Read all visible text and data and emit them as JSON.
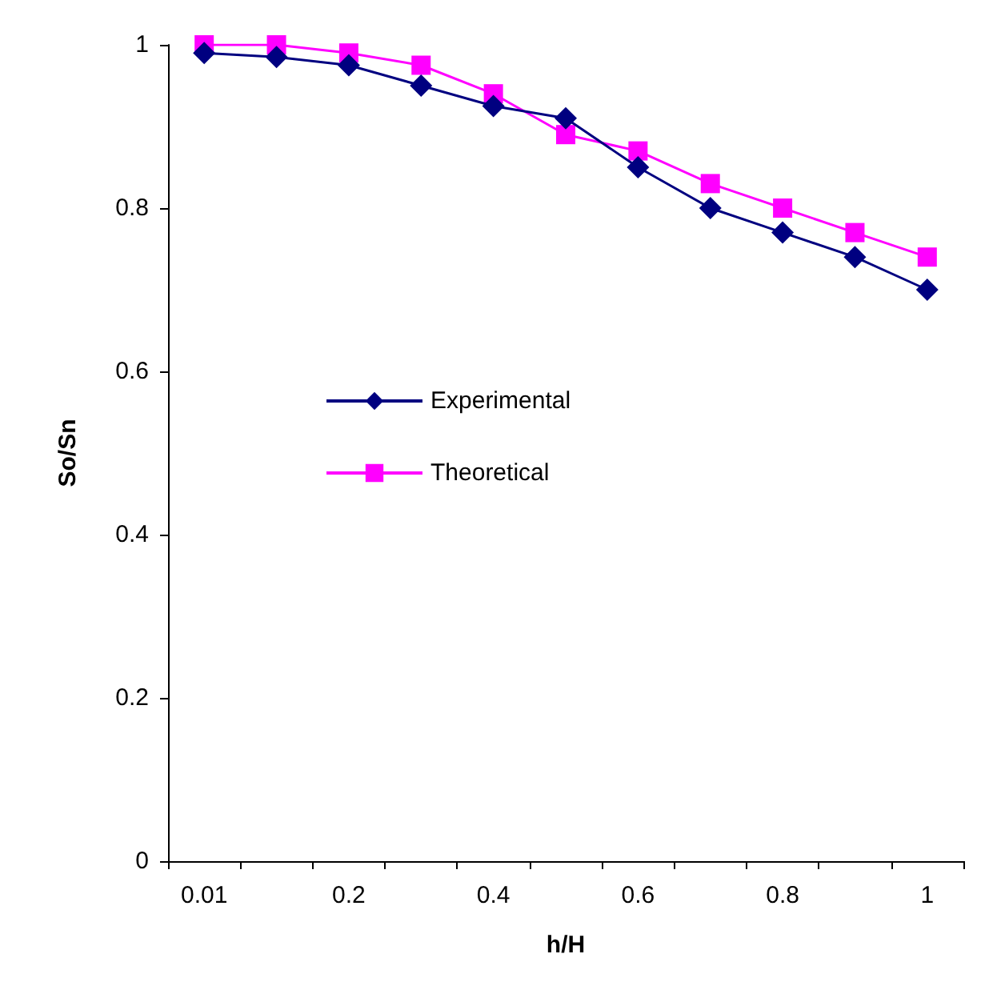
{
  "chart_data": {
    "type": "line",
    "xlabel": "h/H",
    "ylabel": "So/Sn",
    "categories": [
      "0.01",
      null,
      "0.2",
      null,
      "0.4",
      null,
      "0.6",
      null,
      "0.8",
      null,
      "1"
    ],
    "series": [
      {
        "name": "Experimental",
        "color": "#000080",
        "marker": "diamond",
        "values": [
          0.99,
          0.985,
          0.975,
          0.95,
          0.925,
          0.91,
          0.85,
          0.8,
          0.77,
          0.74,
          0.7
        ]
      },
      {
        "name": "Theoretical",
        "color": "#ff00ff",
        "marker": "square",
        "values": [
          1.0,
          1.0,
          0.99,
          0.975,
          0.94,
          0.89,
          0.87,
          0.83,
          0.8,
          0.77,
          0.74
        ]
      }
    ],
    "ylim": [
      0,
      1
    ],
    "yticks": [
      0,
      0.2,
      0.4,
      0.6,
      0.8,
      1
    ],
    "grid": false,
    "legend": "left",
    "line_style": "solid"
  }
}
